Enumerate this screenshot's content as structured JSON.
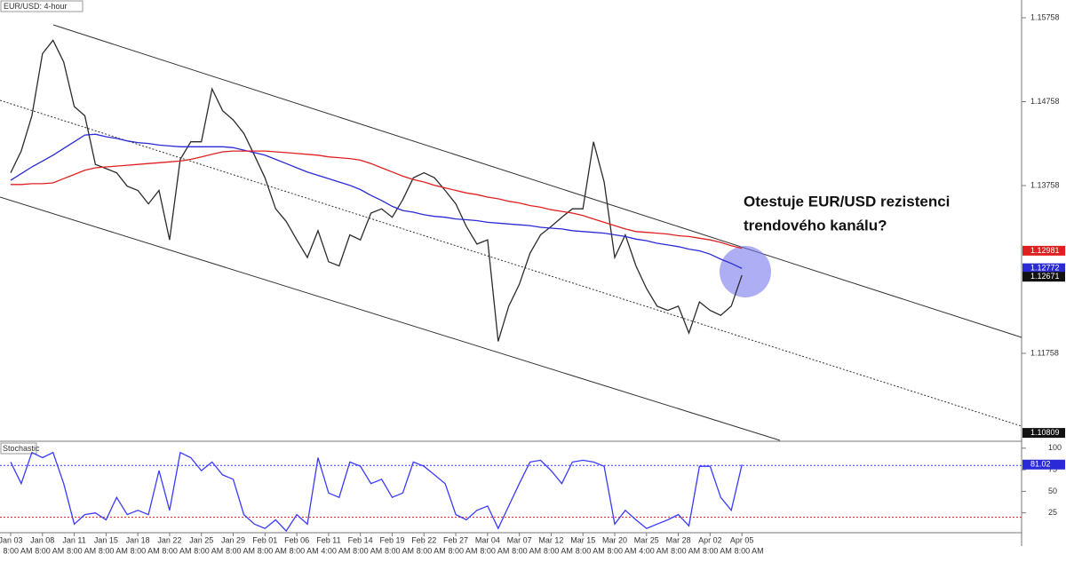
{
  "chart_data": [
    {
      "type": "line",
      "title": "EUR/USD: 4-hour",
      "annotation": [
        "Otestuje EUR/USD rezistenci",
        "trendového kanálu?"
      ],
      "categories": [
        "Jan 03",
        null,
        null,
        "Jan 08",
        null,
        null,
        "Jan 11",
        null,
        null,
        "Jan 15",
        null,
        null,
        "Jan 18",
        null,
        null,
        "Jan 22",
        null,
        null,
        "Jan 25",
        null,
        null,
        "Jan 29",
        null,
        null,
        "Feb 01",
        null,
        null,
        "Feb 06",
        null,
        null,
        "Feb 11",
        null,
        null,
        "Feb 14",
        null,
        null,
        "Feb 19",
        null,
        null,
        "Feb 22",
        null,
        null,
        "Feb 27",
        null,
        null,
        "Mar 04",
        null,
        null,
        "Mar 07",
        null,
        null,
        "Mar 12",
        null,
        null,
        "Mar 15",
        null,
        null,
        "Mar 20",
        null,
        null,
        "Mar 25",
        null,
        null,
        "Mar 28",
        null,
        null,
        "Apr 02",
        null,
        null,
        "Apr 05"
      ],
      "time_labels": [
        "8:00 AM",
        null,
        null,
        "8:00 AM",
        null,
        null,
        "8:00 AM",
        null,
        null,
        "8:00 AM",
        null,
        null,
        "8:00 AM",
        null,
        null,
        "8:00 AM",
        null,
        null,
        "8:00 AM",
        null,
        null,
        "8:00 AM",
        null,
        null,
        "8:00 AM",
        null,
        null,
        "8:00 AM",
        null,
        null,
        "4:00 AM",
        null,
        null,
        "8:00 AM",
        null,
        null,
        "8:00 AM",
        null,
        null,
        "8:00 AM",
        null,
        null,
        "8:00 AM",
        null,
        null,
        "8:00 AM",
        null,
        null,
        "8:00 AM",
        null,
        null,
        "8:00 AM",
        null,
        null,
        "8:00 AM",
        null,
        null,
        "8:00 AM",
        null,
        null,
        "4:00 AM",
        null,
        null,
        "8:00 AM",
        null,
        null,
        "8:00 AM",
        null,
        null,
        "8:00 AM"
      ],
      "series": [
        {
          "color": "#2b2b2b",
          "values": [
            1.1391,
            1.1417,
            1.1459,
            1.1533,
            1.1549,
            1.1523,
            1.147,
            1.1459,
            1.1401,
            1.1396,
            1.1391,
            1.1375,
            1.137,
            1.1354,
            1.137,
            1.1311,
            1.1407,
            1.1428,
            1.1428,
            1.1491,
            1.1465,
            1.1454,
            1.1438,
            1.1412,
            1.1385,
            1.1348,
            1.1333,
            1.1311,
            1.129,
            1.1322,
            1.1285,
            1.128,
            1.1317,
            1.1311,
            1.1343,
            1.1348,
            1.1338,
            1.1359,
            1.1385,
            1.1391,
            1.1385,
            1.137,
            1.1354,
            1.1327,
            1.1306,
            1.1311,
            1.119,
            1.1232,
            1.1258,
            1.1295,
            1.1317,
            1.1327,
            1.1338,
            1.1348,
            1.1348,
            1.1428,
            1.138,
            1.129,
            1.1317,
            1.128,
            1.1253,
            1.1232,
            1.1227,
            1.1232,
            1.12,
            1.1237,
            1.1227,
            1.1221,
            1.1232,
            1.1269
          ]
        },
        {
          "color": "#2a2ad6",
          "values": [
            1.1382,
            1.139,
            1.1398,
            1.1405,
            1.1412,
            1.142,
            1.1428,
            1.1436,
            1.1437,
            1.1434,
            1.1432,
            1.1429,
            1.1427,
            1.1426,
            1.1424,
            1.1423,
            1.1422,
            1.1422,
            1.1422,
            1.1422,
            1.1422,
            1.1421,
            1.1418,
            1.1415,
            1.1412,
            1.1407,
            1.1402,
            1.1397,
            1.1392,
            1.1388,
            1.1384,
            1.138,
            1.1376,
            1.1371,
            1.1364,
            1.1358,
            1.1351,
            1.1346,
            1.1344,
            1.1341,
            1.1339,
            1.1338,
            1.1336,
            1.1335,
            1.1334,
            1.1332,
            1.1331,
            1.133,
            1.1329,
            1.1328,
            1.1326,
            1.1325,
            1.1324,
            1.1322,
            1.1321,
            1.132,
            1.1319,
            1.1317,
            1.1315,
            1.1312,
            1.131,
            1.1307,
            1.1305,
            1.1303,
            1.13,
            1.1298,
            1.1294,
            1.1288,
            1.1283,
            1.1277
          ]
        },
        {
          "color": "#e02020",
          "values": [
            1.1377,
            1.1377,
            1.1378,
            1.1378,
            1.1379,
            1.1384,
            1.1389,
            1.1394,
            1.1397,
            1.1398,
            1.1399,
            1.14,
            1.1401,
            1.1402,
            1.1403,
            1.1404,
            1.1405,
            1.1407,
            1.141,
            1.1413,
            1.1416,
            1.1417,
            1.1417,
            1.1417,
            1.1417,
            1.1416,
            1.1415,
            1.1414,
            1.1413,
            1.1412,
            1.141,
            1.1409,
            1.1408,
            1.1406,
            1.1402,
            1.1397,
            1.1392,
            1.1387,
            1.1383,
            1.138,
            1.1376,
            1.1373,
            1.137,
            1.1367,
            1.1365,
            1.1362,
            1.136,
            1.1357,
            1.1355,
            1.1352,
            1.135,
            1.1347,
            1.1345,
            1.1343,
            1.134,
            1.1336,
            1.1332,
            1.1328,
            1.1324,
            1.1321,
            1.132,
            1.1319,
            1.1318,
            1.1316,
            1.1315,
            1.1313,
            1.1311,
            1.1308,
            1.1304,
            1.1301
          ]
        }
      ],
      "ylim": [
        1.1072,
        1.1597
      ],
      "yticks": [
        1.11758,
        1.13758,
        1.14758,
        1.15758
      ],
      "markers": [
        {
          "value": 1.10809,
          "color": "#111111"
        },
        {
          "value": 1.12981,
          "color": "#e02020"
        },
        {
          "value": 1.12772,
          "color": "#2a2ad6"
        },
        {
          "value": 1.12671,
          "color": "#111111"
        }
      ]
    },
    {
      "type": "line",
      "title": "Stochastic",
      "series": [
        {
          "color": "#3a3aff",
          "values": [
            84,
            59,
            95,
            89,
            95,
            59,
            12,
            23,
            25,
            17,
            43,
            23,
            28,
            23,
            74,
            28,
            95,
            89,
            74,
            84,
            69,
            64,
            23,
            12,
            7,
            17,
            4,
            23,
            12,
            89,
            48,
            43,
            84,
            79,
            59,
            64,
            43,
            48,
            84,
            79,
            69,
            59,
            23,
            17,
            28,
            33,
            7,
            33,
            59,
            84,
            86,
            74,
            59,
            84,
            86,
            84,
            79,
            12,
            28,
            17,
            7,
            12,
            17,
            23,
            10,
            79,
            79,
            43,
            28,
            81
          ]
        }
      ],
      "ylim": [
        0,
        107
      ],
      "yticks": [
        25,
        50,
        75,
        100
      ],
      "levels": [
        {
          "value": 80,
          "color": "#3a3aff"
        },
        {
          "value": 20,
          "color": "#e03030"
        }
      ],
      "markers": [
        {
          "value": 81.02,
          "color": "#2a2ad6"
        }
      ]
    }
  ]
}
